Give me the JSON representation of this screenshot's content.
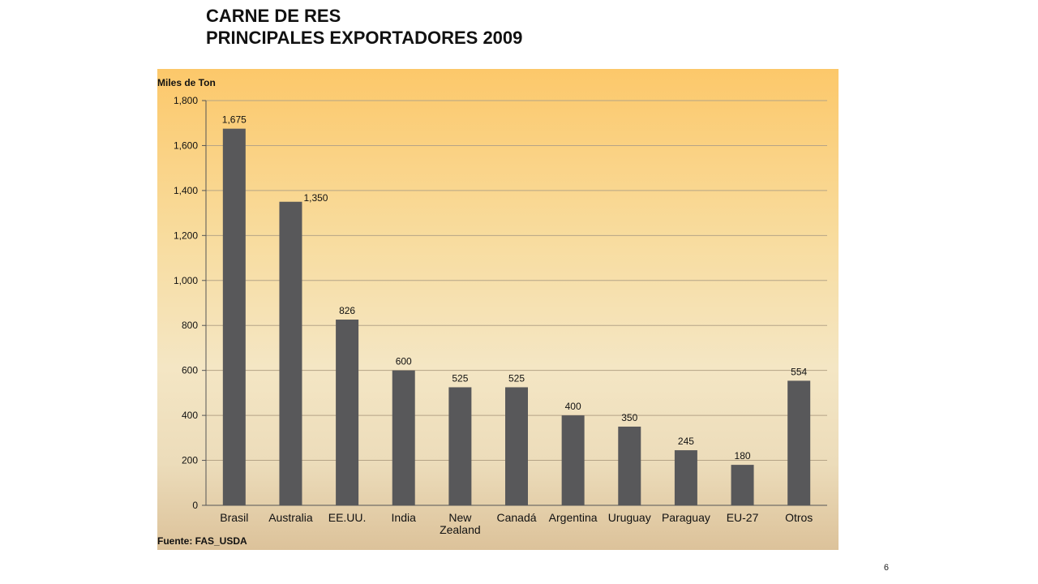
{
  "slide": {
    "title_line1": "CARNE DE RES",
    "title_line2": "PRINCIPALES EXPORTADORES 2009",
    "page_number": "6"
  },
  "colors": {
    "bar": "#58585a",
    "grid": "#b5a487",
    "text": "#111111"
  },
  "chart_data": {
    "type": "bar",
    "title": "",
    "ylabel": "Miles de Ton",
    "xlabel": "",
    "source": "Fuente: FAS_USDA",
    "ylim": [
      0,
      1800
    ],
    "yticks": [
      0,
      200,
      400,
      600,
      800,
      1000,
      1200,
      1400,
      1600,
      1800
    ],
    "ytick_labels": [
      "0",
      "200",
      "400",
      "600",
      "800",
      "1,000",
      "1,200",
      "1,400",
      "1,600",
      "1,800"
    ],
    "categories": [
      "Brasil",
      "Australia",
      "EE.UU.",
      "India",
      "New Zealand",
      "Canadá",
      "Argentina",
      "Uruguay",
      "Paraguay",
      "EU-27",
      "Otros"
    ],
    "values": [
      1675,
      1350,
      826,
      600,
      525,
      525,
      400,
      350,
      245,
      180,
      554
    ],
    "value_labels": [
      "1,675",
      "1,350",
      "826",
      "600",
      "525",
      "525",
      "400",
      "350",
      "245",
      "180",
      "554"
    ],
    "grid": true,
    "legend": false
  }
}
